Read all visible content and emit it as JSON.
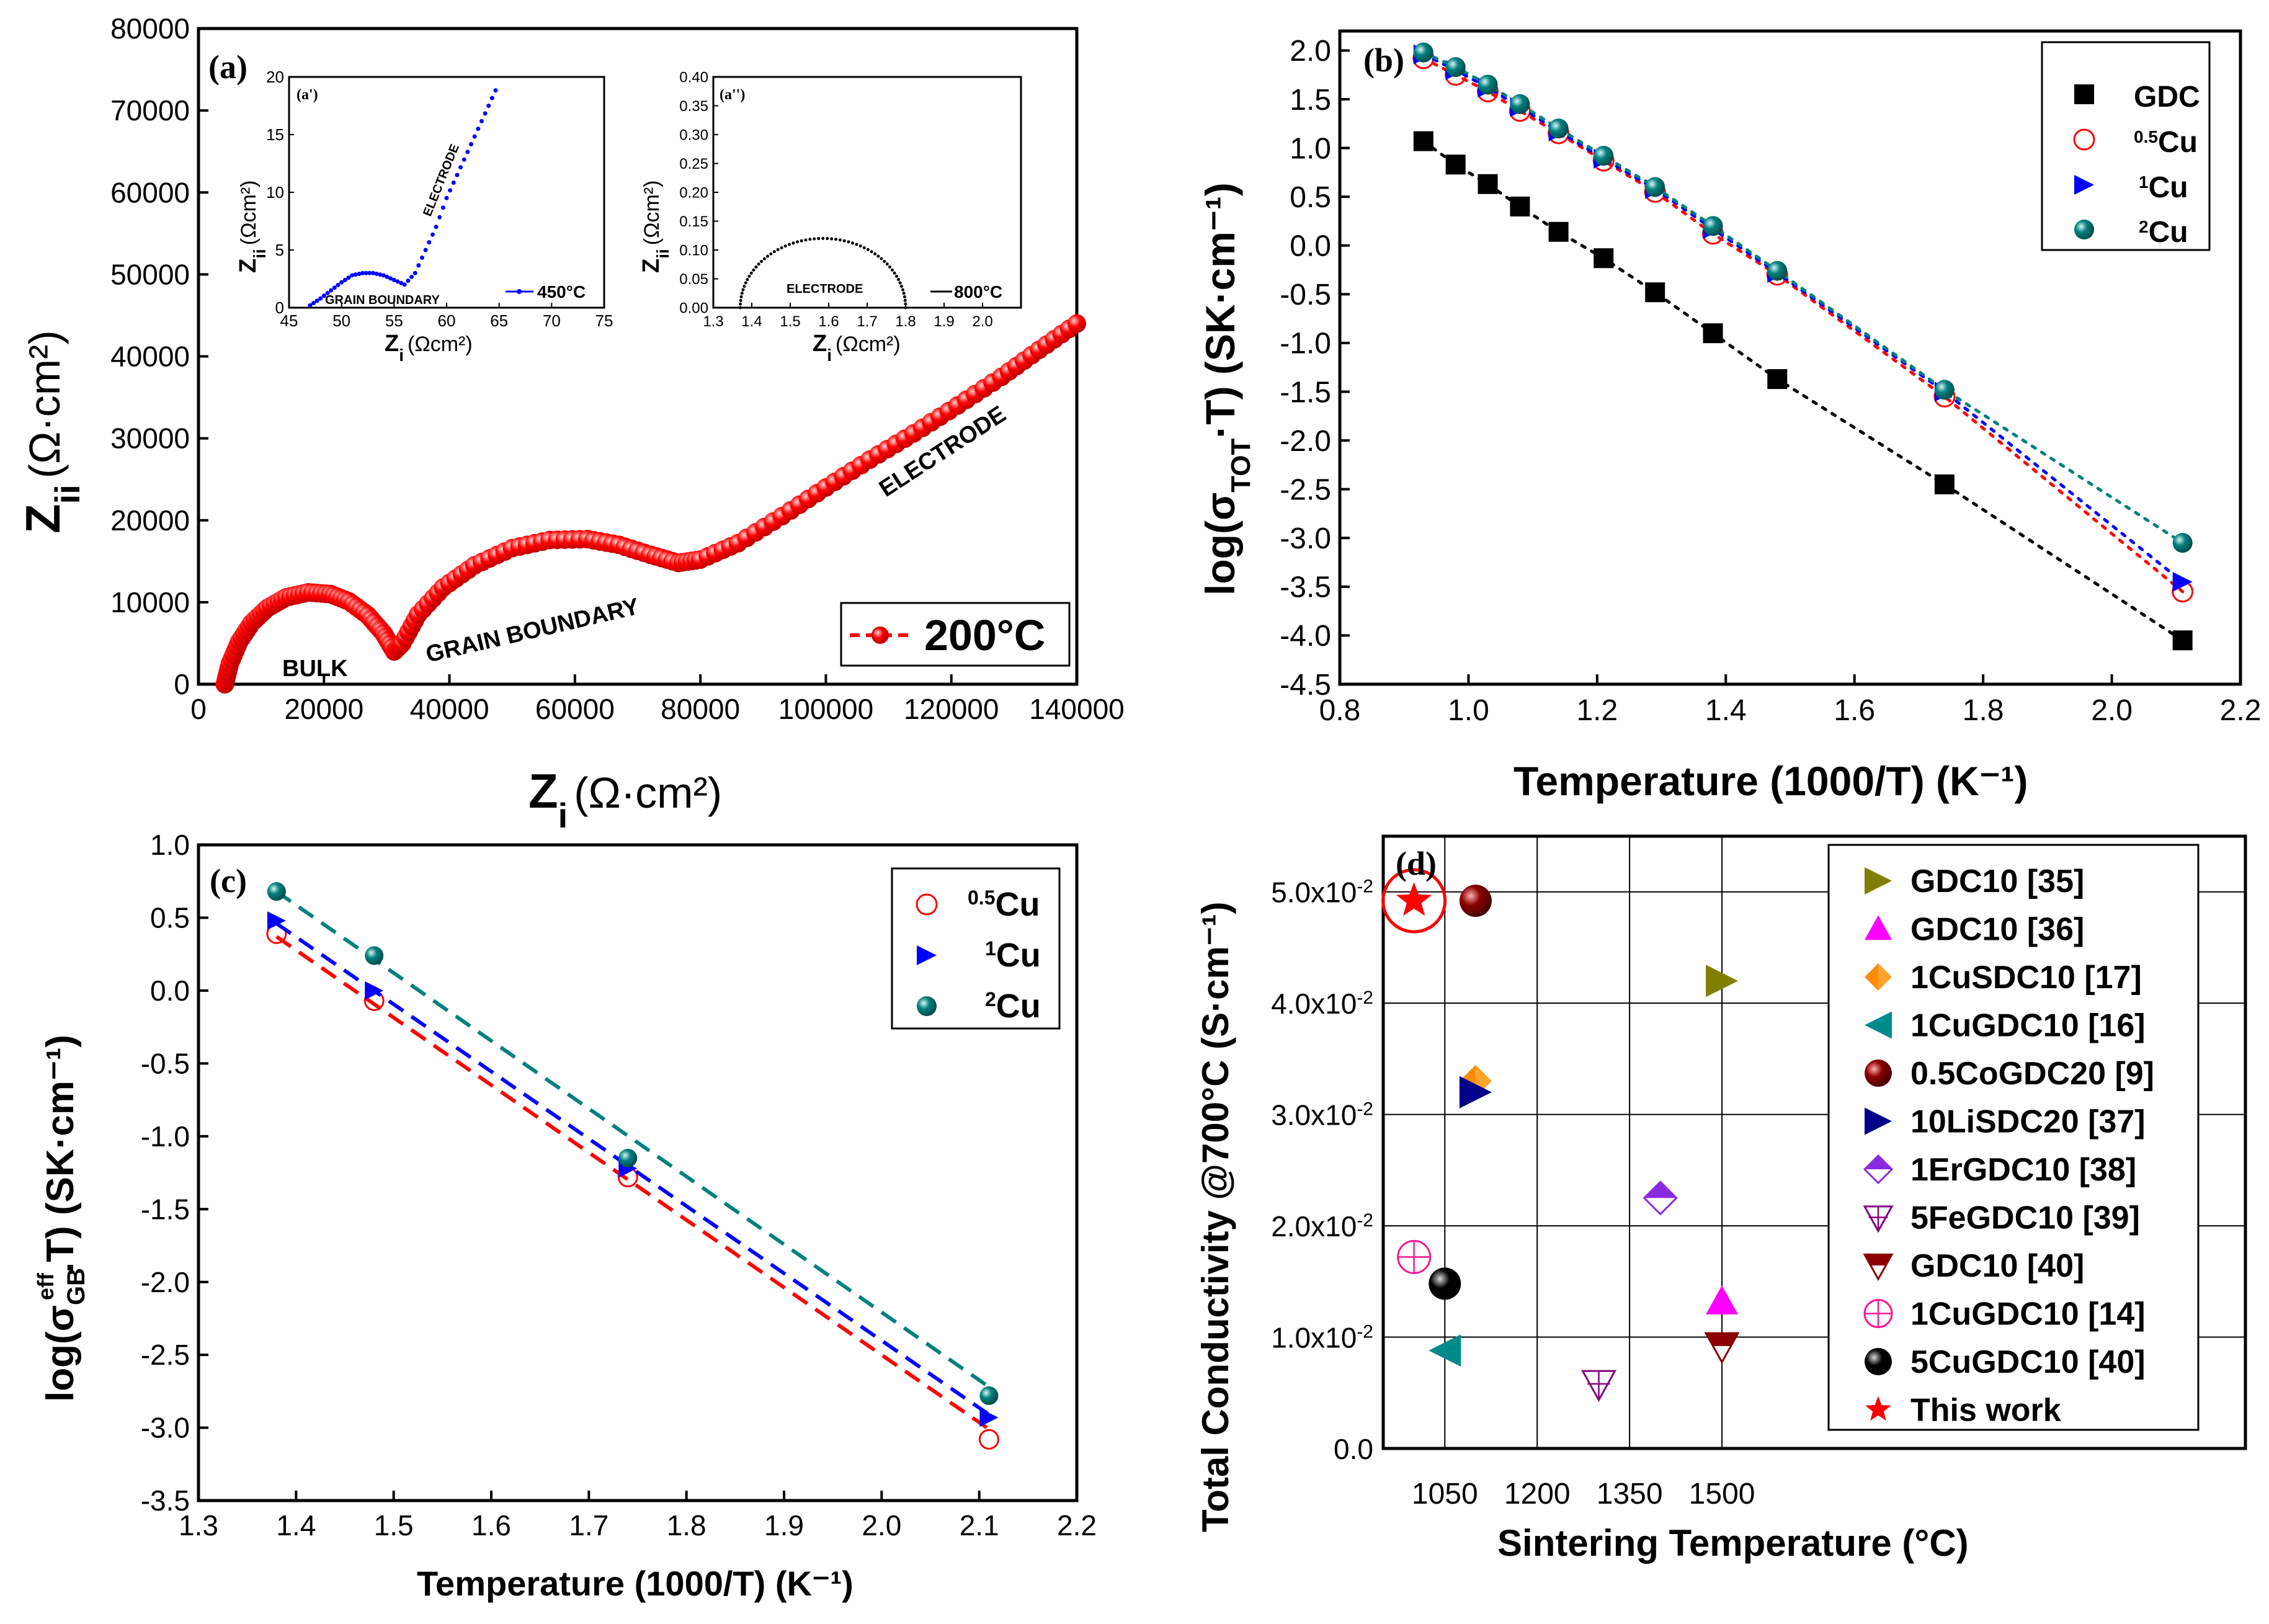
{
  "chart_data": [
    {
      "panel": "(a)",
      "type": "scatter",
      "xlabel": "Z",
      "xlabel_sub": "i",
      "xlabel_unit": "(Ω·cm²)",
      "ylabel": "Z",
      "ylabel_sub": "ii",
      "ylabel_unit": "(Ω·cm²)",
      "xlim": [
        0,
        140000
      ],
      "ylim": [
        0,
        80000
      ],
      "xticks": [
        0,
        20000,
        40000,
        60000,
        80000,
        100000,
        120000,
        140000
      ],
      "yticks": [
        0,
        10000,
        20000,
        30000,
        40000,
        50000,
        60000,
        70000,
        80000
      ],
      "legend": "200°C",
      "annotations": [
        "BULK",
        "GRAIN BOUNDARY",
        "ELECTRODE"
      ],
      "color": "#ff0000",
      "series": [
        {
          "name": "200°C",
          "points": [
            [
              4200,
              0
            ],
            [
              5000,
              2500
            ],
            [
              6500,
              5200
            ],
            [
              8500,
              7500
            ],
            [
              11000,
              9300
            ],
            [
              14000,
              10600
            ],
            [
              17500,
              11200
            ],
            [
              21000,
              11000
            ],
            [
              24000,
              10100
            ],
            [
              27000,
              8400
            ],
            [
              29500,
              6200
            ],
            [
              31200,
              4000
            ],
            [
              32500,
              5000
            ],
            [
              35000,
              8500
            ],
            [
              39000,
              11800
            ],
            [
              44000,
              14500
            ],
            [
              50000,
              16600
            ],
            [
              56000,
              17600
            ],
            [
              62000,
              17700
            ],
            [
              67000,
              17000
            ],
            [
              72000,
              15800
            ],
            [
              76500,
              14800
            ],
            [
              80000,
              15200
            ],
            [
              86000,
              17200
            ],
            [
              93000,
              20500
            ],
            [
              100000,
              24000
            ],
            [
              107000,
              27400
            ],
            [
              114000,
              30600
            ],
            [
              121000,
              34000
            ],
            [
              128000,
              37500
            ],
            [
              134000,
              40800
            ],
            [
              140000,
              44000
            ]
          ]
        }
      ],
      "insets": [
        {
          "panel": "(a')",
          "xlabel": "Z",
          "xlabel_sub": "i",
          "xlabel_unit": "(Ωcm²)",
          "ylabel": "Z",
          "ylabel_sub": "ii",
          "ylabel_unit": "(Ωcm²)",
          "xlim": [
            45,
            75
          ],
          "ylim": [
            0,
            20
          ],
          "xticks": [
            45,
            50,
            55,
            60,
            65,
            70,
            75
          ],
          "yticks": [
            0,
            5,
            10,
            15,
            20
          ],
          "legend": "450°C",
          "annotations": [
            "GRAIN BOUNDARY",
            "ELECTRODE"
          ],
          "color": "#0000ff",
          "points": [
            [
              47,
              0.2
            ],
            [
              48,
              0.8
            ],
            [
              49,
              1.5
            ],
            [
              50,
              2.2
            ],
            [
              51,
              2.8
            ],
            [
              52,
              3.0
            ],
            [
              53,
              3.0
            ],
            [
              54,
              2.8
            ],
            [
              55,
              2.4
            ],
            [
              56,
              2.0
            ],
            [
              57,
              3.0
            ],
            [
              58,
              5
            ],
            [
              59,
              7
            ],
            [
              60,
              9.5
            ],
            [
              61,
              11.5
            ],
            [
              62,
              13.5
            ],
            [
              63,
              15.5
            ],
            [
              64,
              17.5
            ],
            [
              65,
              19.5
            ]
          ]
        },
        {
          "panel": "(a'')",
          "xlabel": "Z",
          "xlabel_sub": "i",
          "xlabel_unit": "(Ωcm²)",
          "ylabel": "Z",
          "ylabel_sub": "ii",
          "ylabel_unit": "(Ωcm²)",
          "xlim": [
            1.3,
            2.1
          ],
          "ylim": [
            0,
            0.4
          ],
          "xticks": [
            1.3,
            1.4,
            1.5,
            1.6,
            1.7,
            1.8,
            1.9,
            2.0
          ],
          "yticks": [
            0.0,
            0.05,
            0.1,
            0.15,
            0.2,
            0.25,
            0.3,
            0.35,
            0.4
          ],
          "xtick_labels": [
            "1.3",
            "1.4",
            "1.5",
            "1.6",
            "1.7",
            "1.8",
            "1.9",
            "2.0"
          ],
          "ytick_labels": [
            "0.00",
            "0.05",
            "0.10",
            "0.15",
            "0.20",
            "0.25",
            "0.30",
            "0.35",
            "0.40"
          ],
          "legend": "800°C",
          "annotations": [
            "ELECTRODE"
          ],
          "color": "#000000",
          "arc": {
            "x_start": 1.37,
            "x_end": 1.8,
            "peak": 0.12
          }
        }
      ]
    },
    {
      "panel": "(b)",
      "type": "scatter",
      "xlabel": "Temperature (1000/T) (K⁻¹)",
      "ylabel": "log(σ",
      "ylabel_sub": "TOT",
      "ylabel_end": "·T) (SK·cm⁻¹)",
      "xlim": [
        0.8,
        2.2
      ],
      "ylim": [
        -4.5,
        2.2
      ],
      "xticks": [
        0.8,
        1.0,
        1.2,
        1.4,
        1.6,
        1.8,
        2.0,
        2.2
      ],
      "yticks": [
        -4.5,
        -4.0,
        -3.5,
        -3.0,
        -2.5,
        -2.0,
        -1.5,
        -1.0,
        -0.5,
        0.0,
        0.5,
        1.0,
        1.5,
        2.0
      ],
      "xtick_labels": [
        "0.8",
        "1.0",
        "1.2",
        "1.4",
        "1.6",
        "1.8",
        "2.0",
        "2.2"
      ],
      "ytick_labels": [
        "-4.5",
        "-4.0",
        "-3.5",
        "-3.0",
        "-2.5",
        "-2.0",
        "-1.5",
        "-1.0",
        "-0.5",
        "0.0",
        "0.5",
        "1.0",
        "1.5",
        "2.0"
      ],
      "legend_position": "top-right",
      "series": [
        {
          "name": "GDC",
          "label_main": "GDC",
          "label_sup": "",
          "marker": "square",
          "color": "#000000",
          "x": [
            0.93,
            0.98,
            1.03,
            1.08,
            1.14,
            1.21,
            1.29,
            1.38,
            1.48,
            1.74,
            2.11
          ],
          "y": [
            1.07,
            0.83,
            0.63,
            0.4,
            0.14,
            -0.13,
            -0.48,
            -0.9,
            -1.37,
            -2.45,
            -4.05
          ]
        },
        {
          "name": "0.5Cu",
          "label_main": "Cu",
          "label_sup": "0.5",
          "marker": "circle-open",
          "color": "#ff0000",
          "x": [
            0.93,
            0.98,
            1.03,
            1.08,
            1.14,
            1.21,
            1.29,
            1.38,
            1.48,
            1.74,
            2.11
          ],
          "y": [
            1.92,
            1.75,
            1.58,
            1.38,
            1.15,
            0.87,
            0.55,
            0.12,
            -0.3,
            -1.55,
            -3.55
          ]
        },
        {
          "name": "1Cu",
          "label_main": "Cu",
          "label_sup": "1",
          "marker": "triangle-right",
          "color": "#0000ff",
          "x": [
            0.93,
            0.98,
            1.03,
            1.08,
            1.14,
            1.21,
            1.29,
            1.38,
            1.48,
            1.74,
            2.11
          ],
          "y": [
            1.96,
            1.8,
            1.62,
            1.42,
            1.17,
            0.89,
            0.58,
            0.17,
            -0.28,
            -1.5,
            -3.45
          ]
        },
        {
          "name": "2Cu",
          "label_main": "Cu",
          "label_sup": "2",
          "marker": "sphere",
          "color": "#00807e",
          "x": [
            0.93,
            0.98,
            1.03,
            1.08,
            1.14,
            1.21,
            1.29,
            1.38,
            1.48,
            1.74,
            2.11
          ],
          "y": [
            1.98,
            1.83,
            1.65,
            1.45,
            1.2,
            0.92,
            0.6,
            0.2,
            -0.26,
            -1.48,
            -3.05
          ]
        }
      ]
    },
    {
      "panel": "(c)",
      "type": "scatter",
      "xlabel": "Temperature (1000/T) (K⁻¹)",
      "ylabel": "log(σ",
      "ylabel_sub": "GB",
      "ylabel_sup": "eff",
      "ylabel_end": ".T) (SK·cm⁻¹)",
      "xlim": [
        1.3,
        2.2
      ],
      "ylim": [
        -3.5,
        1.0
      ],
      "xticks": [
        1.3,
        1.4,
        1.5,
        1.6,
        1.7,
        1.8,
        1.9,
        2.0,
        2.1,
        2.2
      ],
      "yticks": [
        -3.5,
        -3.0,
        -2.5,
        -2.0,
        -1.5,
        -1.0,
        -0.5,
        0.0,
        0.5,
        1.0
      ],
      "xtick_labels": [
        "1.3",
        "1.4",
        "1.5",
        "1.6",
        "1.7",
        "1.8",
        "1.9",
        "2.0",
        "2.1",
        "2.2"
      ],
      "ytick_labels": [
        "-3.5",
        "-3.0",
        "-2.5",
        "-2.0",
        "-1.5",
        "-1.0",
        "-0.5",
        "0.0",
        "0.5",
        "1.0"
      ],
      "legend_position": "top-right",
      "series": [
        {
          "name": "0.5Cu",
          "label_main": "Cu",
          "label_sup": "0.5",
          "marker": "circle-open",
          "color": "#ff0000",
          "x": [
            1.38,
            1.48,
            1.74,
            2.11
          ],
          "y": [
            0.39,
            -0.07,
            -1.28,
            -3.08
          ],
          "fit": [
            [
              1.38,
              0.37
            ],
            [
              2.11,
              -3.01
            ]
          ]
        },
        {
          "name": "1Cu",
          "label_main": "Cu",
          "label_sup": "1",
          "marker": "triangle-right",
          "color": "#0000ff",
          "x": [
            1.38,
            1.48,
            1.74,
            2.11
          ],
          "y": [
            0.48,
            0.0,
            -1.22,
            -2.93
          ],
          "fit": [
            [
              1.38,
              0.46
            ],
            [
              2.11,
              -2.91
            ]
          ]
        },
        {
          "name": "2Cu",
          "label_main": "Cu",
          "label_sup": "2",
          "marker": "sphere",
          "color": "#00807e",
          "x": [
            1.38,
            1.48,
            1.74,
            2.11
          ],
          "y": [
            0.68,
            0.24,
            -1.15,
            -2.78
          ],
          "fit": [
            [
              1.38,
              0.68
            ],
            [
              2.11,
              -2.72
            ]
          ]
        }
      ]
    },
    {
      "panel": "(d)",
      "type": "scatter",
      "xlabel": "Sintering Temperature (°C)",
      "ylabel": "Total Conductivity @700°C (S·cm⁻¹)",
      "xlim": [
        950,
        2350
      ],
      "ylim": [
        0,
        0.055
      ],
      "xticks": [
        1050,
        1200,
        1350,
        1500
      ],
      "yticks": [
        0.0,
        0.01,
        0.02,
        0.03,
        0.04,
        0.05
      ],
      "xtick_labels": [
        "1050",
        "1200",
        "1350",
        "1500"
      ],
      "ytick_labels": [
        "0.0",
        "1.0x10",
        "2.0x10",
        "3.0x10",
        "4.0x10",
        "5.0x10"
      ],
      "ytick_sup": [
        "",
        "-2",
        "-2",
        "-2",
        "-2",
        "-2"
      ],
      "legend_position": "right",
      "series": [
        {
          "name": "GDC10 [35]",
          "marker": "triangle-right",
          "color": "#808000",
          "x": 1500,
          "y": 0.042
        },
        {
          "name": "GDC10 [36]",
          "marker": "triangle-up",
          "color": "#ff00ff",
          "x": 1500,
          "y": 0.0132
        },
        {
          "name": "1CuSDC10 [17]",
          "marker": "diamond",
          "color": "#ff8c00",
          "x": 1100,
          "y": 0.033
        },
        {
          "name": "1CuGDC10 [16]",
          "marker": "triangle-left",
          "color": "#008b8b",
          "x": 1050,
          "y": 0.0088
        },
        {
          "name": "0.5CoGDC20 [9]",
          "marker": "sphere",
          "color": "#8b0000",
          "x": 1100,
          "y": 0.0492
        },
        {
          "name": "10LiSDC20 [37]",
          "marker": "triangle-right",
          "color": "#00008b",
          "x": 1100,
          "y": 0.032
        },
        {
          "name": "1ErGDC10 [38]",
          "marker": "diamond-half",
          "color": "#8a2be2",
          "x": 1400,
          "y": 0.0225
        },
        {
          "name": "5FeGDC10 [39]",
          "marker": "triangle-down-open",
          "color": "#800080",
          "x": 1300,
          "y": 0.0058
        },
        {
          "name": "GDC10 [40]",
          "marker": "triangle-down-half",
          "color": "#8b0000",
          "x": 1500,
          "y": 0.0092
        },
        {
          "name": "1CuGDC10 [14]",
          "marker": "circle-cross",
          "color": "#ff1493",
          "x": 1000,
          "y": 0.0172
        },
        {
          "name": "5CuGDC10 [40]",
          "marker": "sphere",
          "color": "#000000",
          "x": 1050,
          "y": 0.0148
        },
        {
          "name": "This work",
          "marker": "star",
          "color": "#ff0000",
          "x": 1000,
          "y": 0.0492
        }
      ]
    }
  ]
}
